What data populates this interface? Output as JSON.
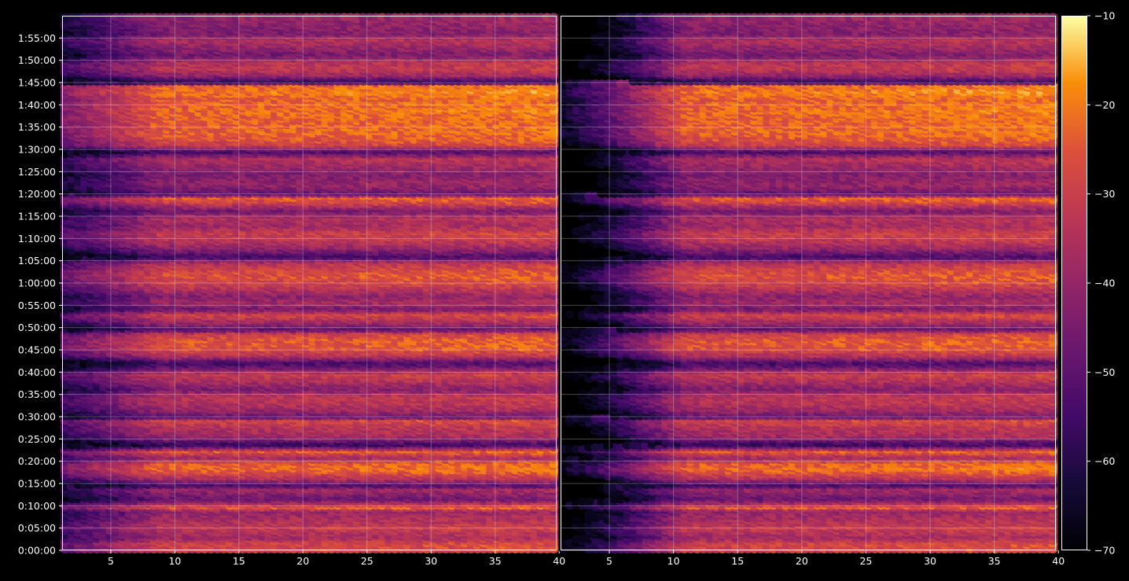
{
  "chart_data": {
    "type": "heatmap",
    "title": "",
    "colormap": "inferno",
    "background": "#000000",
    "panels": [
      {
        "name": "",
        "xlim": [
          1.2,
          39.8
        ],
        "xticks": [
          5,
          10,
          15,
          20,
          25,
          30,
          35,
          40
        ],
        "low_x_attenuation_until": 9
      },
      {
        "name": "",
        "xlim": [
          1.2,
          39.8
        ],
        "xticks": [
          5,
          10,
          15,
          20,
          25,
          30,
          35,
          40
        ],
        "low_x_attenuation_until": 11
      }
    ],
    "y_axis": {
      "label": "",
      "unit": "h:mm:ss",
      "range_seconds": [
        0,
        7200
      ],
      "tick_labels": [
        "0:00:00",
        "0:05:00",
        "0:10:00",
        "0:15:00",
        "0:20:00",
        "0:25:00",
        "0:30:00",
        "0:35:00",
        "0:40:00",
        "0:45:00",
        "0:50:00",
        "0:55:00",
        "1:00:00",
        "1:05:00",
        "1:10:00",
        "1:15:00",
        "1:20:00",
        "1:25:00",
        "1:30:00",
        "1:35:00",
        "1:40:00",
        "1:45:00",
        "1:50:00",
        "1:55:00"
      ],
      "tick_seconds": [
        0,
        300,
        600,
        900,
        1200,
        1500,
        1800,
        2100,
        2400,
        2700,
        3000,
        3300,
        3600,
        3900,
        4200,
        4500,
        4800,
        5100,
        5400,
        5700,
        6000,
        6300,
        6600,
        6900
      ]
    },
    "colorbar": {
      "range": [
        -70,
        -10
      ],
      "ticks": [
        -70,
        -60,
        -50,
        -40,
        -30,
        -20,
        -10
      ],
      "tick_labels": [
        "−70",
        "−60",
        "−50",
        "−40",
        "−30",
        "−20",
        "−10"
      ]
    },
    "grid": true,
    "intensity_profile_time_vs_dB": {
      "seconds": [
        0,
        120,
        200,
        330,
        420,
        560,
        600,
        640,
        720,
        850,
        900,
        1000,
        1060,
        1120,
        1200,
        1280,
        1360,
        1450,
        1560,
        1680,
        1780,
        1820,
        1900,
        2000,
        2100,
        2200,
        2300,
        2400,
        2480,
        2550,
        2650,
        2750,
        2850,
        2950,
        3000,
        3100,
        3200,
        3280,
        3360,
        3450,
        3600,
        3720,
        3800,
        3900,
        3980,
        4100,
        4200,
        4300,
        4400,
        4500,
        4600,
        4720,
        4780,
        4820,
        4950,
        5100,
        5300,
        5400,
        5480,
        5560,
        5650,
        5800,
        5950,
        6100,
        6200,
        6290,
        6330,
        6420,
        6520,
        6600,
        6700,
        6800,
        6900,
        6980,
        7200
      ],
      "dB": [
        -30,
        -28,
        -38,
        -31,
        -35,
        -40,
        -24,
        -32,
        -48,
        -38,
        -55,
        -34,
        -28,
        -22,
        -25,
        -38,
        -24,
        -58,
        -38,
        -34,
        -28,
        -50,
        -40,
        -34,
        -33,
        -44,
        -36,
        -30,
        -45,
        -55,
        -34,
        -26,
        -25,
        -30,
        -50,
        -38,
        -28,
        -46,
        -37,
        -42,
        -30,
        -26,
        -28,
        -34,
        -55,
        -40,
        -33,
        -30,
        -38,
        -35,
        -46,
        -28,
        -24,
        -50,
        -40,
        -44,
        -34,
        -54,
        -30,
        -26,
        -23,
        -24,
        -22,
        -24,
        -20,
        -23,
        -62,
        -40,
        -32,
        -34,
        -46,
        -40,
        -35,
        -44,
        -40
      ]
    }
  }
}
